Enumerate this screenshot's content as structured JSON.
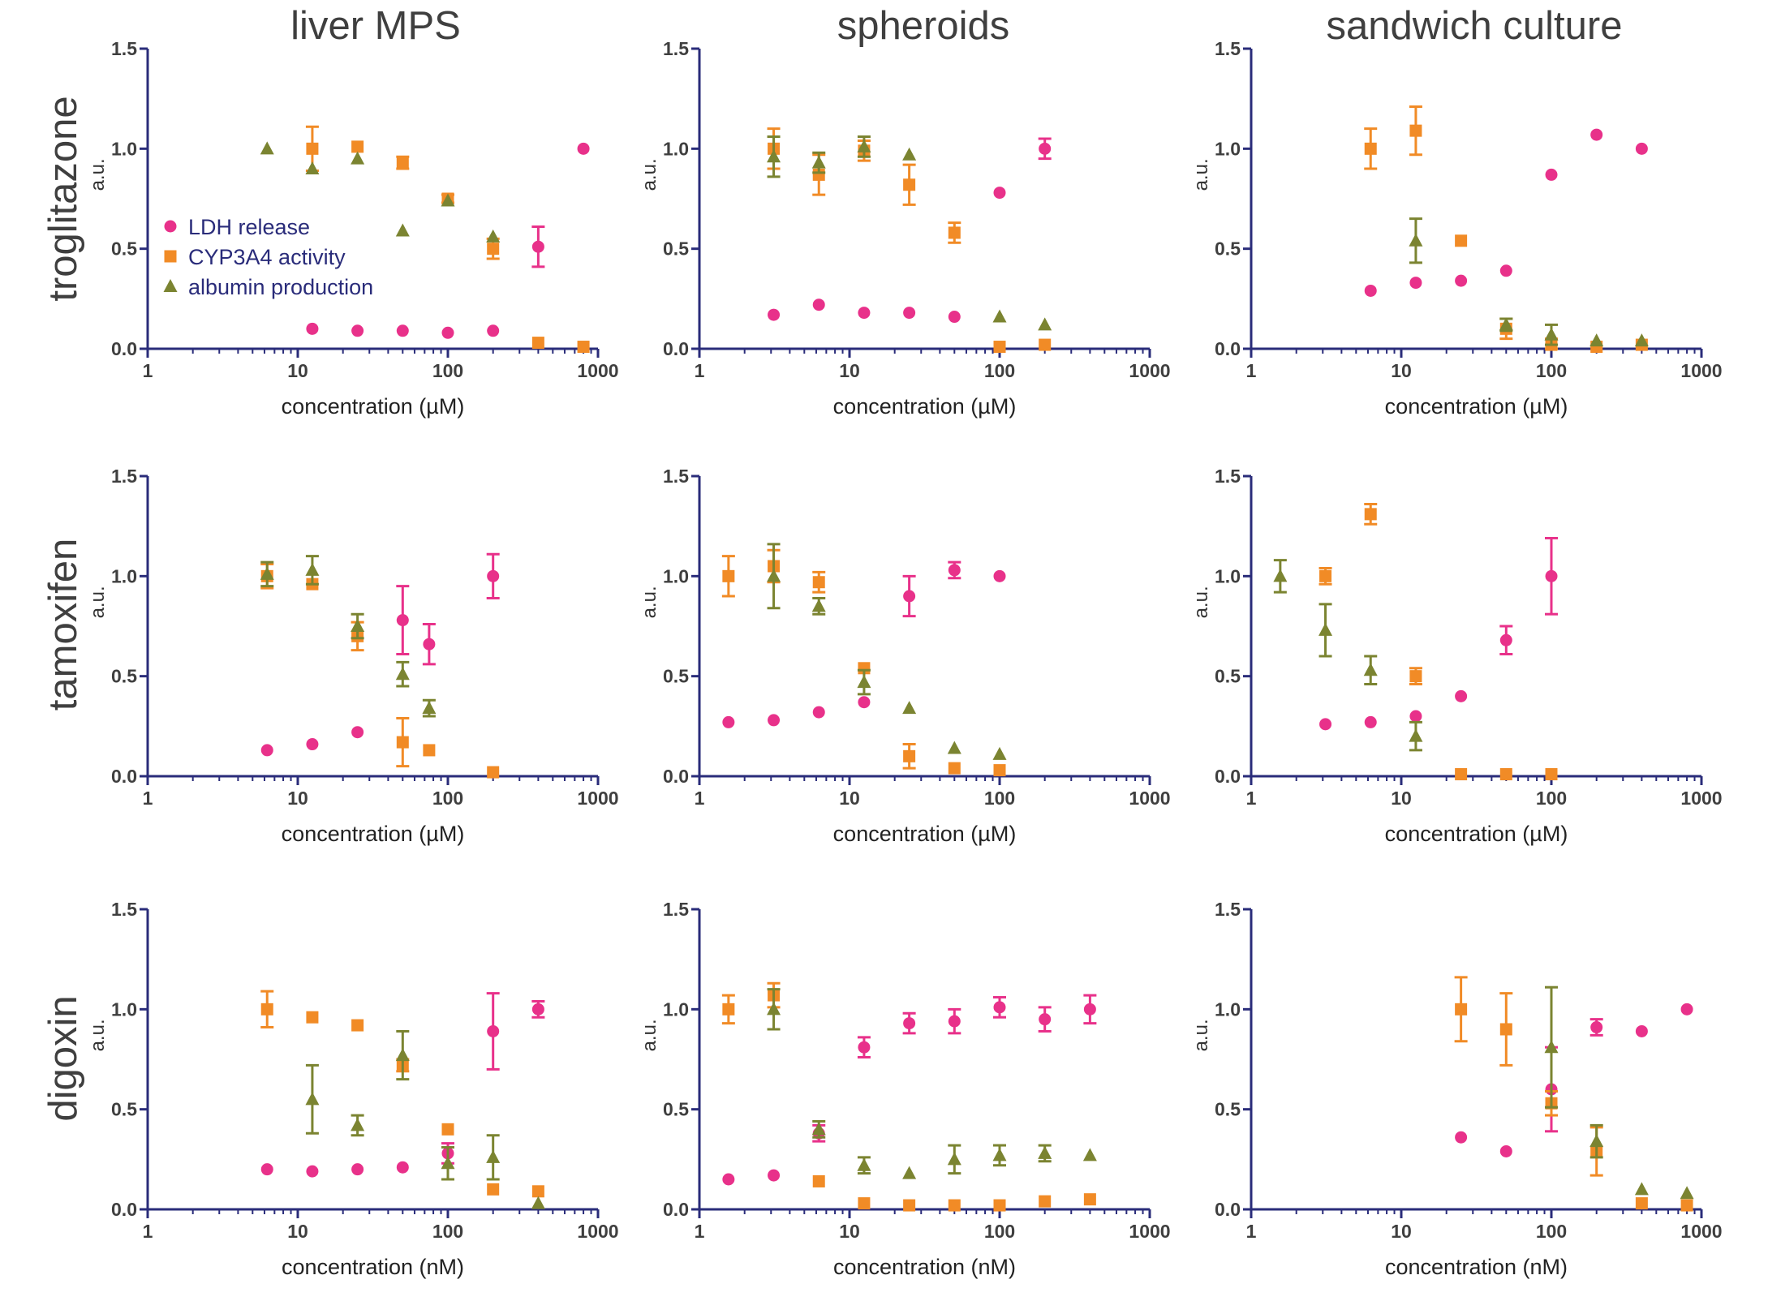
{
  "figure": {
    "column_titles": [
      "liver MPS",
      "spheroids",
      "sandwich culture"
    ],
    "row_titles": [
      "troglitazone",
      "tamoxifen",
      "digoxin"
    ]
  },
  "colors": {
    "axis": "#2a2c7a",
    "LDH release": "#e8318a",
    "CYP3A4 activity": "#f18b26",
    "albumin production": "#7b8431"
  },
  "legend": {
    "position": "upper-left of first panel",
    "entries": [
      {
        "label": "LDH release",
        "marker": "circle",
        "color": "#e8318a"
      },
      {
        "label": "CYP3A4 activity",
        "marker": "square",
        "color": "#f18b26"
      },
      {
        "label": "albumin production",
        "marker": "triangle",
        "color": "#7b8431"
      }
    ]
  },
  "chart_data": [
    {
      "type": "scatter",
      "row": 0,
      "col": 0,
      "xscale": "log",
      "xlim": [
        1,
        1000
      ],
      "ylim": [
        0,
        1.5
      ],
      "xticks": [
        "1",
        "10",
        "100",
        "1000"
      ],
      "yticks": [
        "0.0",
        "0.5",
        "1.0",
        "1.5"
      ],
      "xlabel": "concentration (µM)",
      "ylabel": "a.u.",
      "legend": true,
      "series": [
        {
          "name": "LDH release",
          "x": [
            12.5,
            25,
            50,
            100,
            200,
            400,
            800
          ],
          "y": [
            0.1,
            0.09,
            0.09,
            0.08,
            0.09,
            0.51,
            1.0
          ],
          "err": [
            0,
            0,
            0,
            0,
            0,
            0.1,
            0
          ]
        },
        {
          "name": "CYP3A4 activity",
          "x": [
            12.5,
            25,
            50,
            100,
            200,
            400,
            800
          ],
          "y": [
            1.0,
            1.01,
            0.93,
            0.75,
            0.5,
            0.03,
            0.01
          ],
          "err": [
            0.11,
            0,
            0.03,
            0.02,
            0.05,
            0,
            0
          ]
        },
        {
          "name": "albumin production",
          "x": [
            6.25,
            12.5,
            25,
            50,
            100,
            200
          ],
          "y": [
            1.0,
            0.9,
            0.95,
            0.59,
            0.74,
            0.56
          ],
          "err": [
            0,
            0,
            0,
            0,
            0,
            0
          ]
        }
      ]
    },
    {
      "type": "scatter",
      "row": 0,
      "col": 1,
      "xscale": "log",
      "xlim": [
        1,
        1000
      ],
      "ylim": [
        0,
        1.5
      ],
      "xticks": [
        "1",
        "10",
        "100",
        "1000"
      ],
      "yticks": [
        "0.0",
        "0.5",
        "1.0",
        "1.5"
      ],
      "xlabel": "concentration (µM)",
      "ylabel": "a.u.",
      "series": [
        {
          "name": "LDH release",
          "x": [
            3.125,
            6.25,
            12.5,
            25,
            50,
            100,
            200
          ],
          "y": [
            0.17,
            0.22,
            0.18,
            0.18,
            0.16,
            0.78,
            1.0
          ],
          "err": [
            0,
            0,
            0,
            0,
            0,
            0,
            0.05
          ]
        },
        {
          "name": "CYP3A4 activity",
          "x": [
            3.125,
            6.25,
            12.5,
            25,
            50,
            100,
            200
          ],
          "y": [
            1.0,
            0.87,
            0.99,
            0.82,
            0.58,
            0.01,
            0.02
          ],
          "err": [
            0.1,
            0.1,
            0.05,
            0.1,
            0.05,
            0,
            0
          ]
        },
        {
          "name": "albumin production",
          "x": [
            3.125,
            6.25,
            12.5,
            25,
            100,
            200
          ],
          "y": [
            0.96,
            0.93,
            1.01,
            0.97,
            0.16,
            0.12
          ],
          "err": [
            0.1,
            0.05,
            0.05,
            0,
            0,
            0
          ]
        }
      ]
    },
    {
      "type": "scatter",
      "row": 0,
      "col": 2,
      "xscale": "log",
      "xlim": [
        1,
        1000
      ],
      "ylim": [
        0,
        1.5
      ],
      "xticks": [
        "1",
        "10",
        "100",
        "1000"
      ],
      "yticks": [
        "0.0",
        "0.5",
        "1.0",
        "1.5"
      ],
      "xlabel": "concentration (µM)",
      "ylabel": "a.u.",
      "series": [
        {
          "name": "LDH release",
          "x": [
            6.25,
            12.5,
            25,
            50,
            100,
            200,
            400
          ],
          "y": [
            0.29,
            0.33,
            0.34,
            0.39,
            0.87,
            1.07,
            1.0
          ],
          "err": [
            0,
            0,
            0,
            0,
            0,
            0,
            0
          ]
        },
        {
          "name": "CYP3A4 activity",
          "x": [
            6.25,
            12.5,
            25,
            50,
            100,
            200,
            400
          ],
          "y": [
            1.0,
            1.09,
            0.54,
            0.1,
            0.02,
            0.01,
            0.02
          ],
          "err": [
            0.1,
            0.12,
            0,
            0.05,
            0.03,
            0,
            0
          ]
        },
        {
          "name": "albumin production",
          "x": [
            12.5,
            50,
            100,
            200,
            400
          ],
          "y": [
            0.54,
            0.12,
            0.07,
            0.04,
            0.04
          ],
          "err": [
            0.11,
            0.03,
            0.05,
            0,
            0
          ]
        }
      ]
    },
    {
      "type": "scatter",
      "row": 1,
      "col": 0,
      "xscale": "log",
      "xlim": [
        1,
        1000
      ],
      "ylim": [
        0,
        1.5
      ],
      "xticks": [
        "1",
        "10",
        "100",
        "1000"
      ],
      "yticks": [
        "0.0",
        "0.5",
        "1.0",
        "1.5"
      ],
      "xlabel": "concentration (µM)",
      "ylabel": "a.u.",
      "series": [
        {
          "name": "LDH release",
          "x": [
            6.25,
            12.5,
            25,
            50,
            75,
            200
          ],
          "y": [
            0.13,
            0.16,
            0.22,
            0.78,
            0.66,
            1.0
          ],
          "err": [
            0,
            0,
            0,
            0.17,
            0.1,
            0.11
          ]
        },
        {
          "name": "CYP3A4 activity",
          "x": [
            6.25,
            12.5,
            25,
            50,
            75,
            200
          ],
          "y": [
            1.0,
            0.96,
            0.7,
            0.17,
            0.13,
            0.02
          ],
          "err": [
            0.06,
            0,
            0.07,
            0.12,
            0,
            0
          ]
        },
        {
          "name": "albumin production",
          "x": [
            6.25,
            12.5,
            25,
            50,
            75
          ],
          "y": [
            1.01,
            1.03,
            0.75,
            0.51,
            0.34
          ],
          "err": [
            0.06,
            0.07,
            0.06,
            0.06,
            0.04
          ]
        }
      ]
    },
    {
      "type": "scatter",
      "row": 1,
      "col": 1,
      "xscale": "log",
      "xlim": [
        1,
        1000
      ],
      "ylim": [
        0,
        1.5
      ],
      "xticks": [
        "1",
        "10",
        "100",
        "1000"
      ],
      "yticks": [
        "0.0",
        "0.5",
        "1.0",
        "1.5"
      ],
      "xlabel": "concentration (µM)",
      "ylabel": "a.u.",
      "series": [
        {
          "name": "LDH release",
          "x": [
            1.5625,
            3.125,
            6.25,
            12.5,
            25,
            50,
            100
          ],
          "y": [
            0.27,
            0.28,
            0.32,
            0.37,
            0.9,
            1.03,
            1.0
          ],
          "err": [
            0,
            0,
            0,
            0,
            0.1,
            0.04,
            0
          ]
        },
        {
          "name": "CYP3A4 activity",
          "x": [
            1.5625,
            3.125,
            6.25,
            12.5,
            25,
            50,
            100
          ],
          "y": [
            1.0,
            1.05,
            0.97,
            0.54,
            0.1,
            0.04,
            0.03
          ],
          "err": [
            0.1,
            0.08,
            0.05,
            0,
            0.06,
            0,
            0
          ]
        },
        {
          "name": "albumin production",
          "x": [
            3.125,
            6.25,
            12.5,
            25,
            50,
            100
          ],
          "y": [
            1.0,
            0.85,
            0.47,
            0.34,
            0.14,
            0.11
          ],
          "err": [
            0.16,
            0.04,
            0.06,
            0,
            0,
            0
          ]
        }
      ]
    },
    {
      "type": "scatter",
      "row": 1,
      "col": 2,
      "xscale": "log",
      "xlim": [
        1,
        1000
      ],
      "ylim": [
        0,
        1.5
      ],
      "xticks": [
        "1",
        "10",
        "100",
        "1000"
      ],
      "yticks": [
        "0.0",
        "0.5",
        "1.0",
        "1.5"
      ],
      "xlabel": "concentration (µM)",
      "ylabel": "a.u.",
      "series": [
        {
          "name": "LDH release",
          "x": [
            3.125,
            6.25,
            12.5,
            25,
            50,
            100
          ],
          "y": [
            0.26,
            0.27,
            0.3,
            0.4,
            0.68,
            1.0
          ],
          "err": [
            0,
            0,
            0,
            0,
            0.07,
            0.19
          ]
        },
        {
          "name": "CYP3A4 activity",
          "x": [
            3.125,
            6.25,
            12.5,
            25,
            50,
            100
          ],
          "y": [
            1.0,
            1.31,
            0.5,
            0.01,
            0.01,
            0.01
          ],
          "err": [
            0.04,
            0.05,
            0.04,
            0,
            0,
            0
          ]
        },
        {
          "name": "albumin production",
          "x": [
            1.5625,
            3.125,
            6.25,
            12.5
          ],
          "y": [
            1.0,
            0.73,
            0.53,
            0.2
          ],
          "err": [
            0.08,
            0.13,
            0.07,
            0.07
          ]
        }
      ]
    },
    {
      "type": "scatter",
      "row": 2,
      "col": 0,
      "xscale": "log",
      "xlim": [
        1,
        1000
      ],
      "ylim": [
        0,
        1.5
      ],
      "xticks": [
        "1",
        "10",
        "100",
        "1000"
      ],
      "yticks": [
        "0.0",
        "0.5",
        "1.0",
        "1.5"
      ],
      "xlabel": "concentration (nM)",
      "ylabel": "a.u.",
      "series": [
        {
          "name": "LDH release",
          "x": [
            6.25,
            12.5,
            25,
            50,
            100,
            200,
            400
          ],
          "y": [
            0.2,
            0.19,
            0.2,
            0.21,
            0.28,
            0.89,
            1.0
          ],
          "err": [
            0,
            0,
            0,
            0,
            0.05,
            0.19,
            0.04
          ]
        },
        {
          "name": "CYP3A4 activity",
          "x": [
            6.25,
            12.5,
            25,
            50,
            100,
            200,
            400
          ],
          "y": [
            1.0,
            0.96,
            0.92,
            0.72,
            0.4,
            0.1,
            0.09
          ],
          "err": [
            0.09,
            0,
            0,
            0.03,
            0,
            0,
            0
          ]
        },
        {
          "name": "albumin production",
          "x": [
            12.5,
            25,
            50,
            100,
            200,
            400
          ],
          "y": [
            0.55,
            0.42,
            0.77,
            0.23,
            0.26,
            0.03
          ],
          "err": [
            0.17,
            0.05,
            0.12,
            0.08,
            0.11,
            0
          ]
        }
      ]
    },
    {
      "type": "scatter",
      "row": 2,
      "col": 1,
      "xscale": "log",
      "xlim": [
        1,
        1000
      ],
      "ylim": [
        0,
        1.5
      ],
      "xticks": [
        "1",
        "10",
        "100",
        "1000"
      ],
      "yticks": [
        "0.0",
        "0.5",
        "1.0",
        "1.5"
      ],
      "xlabel": "concentration (nM)",
      "ylabel": "a.u.",
      "series": [
        {
          "name": "LDH release",
          "x": [
            1.5625,
            3.125,
            6.25,
            12.5,
            25,
            50,
            100,
            200,
            400
          ],
          "y": [
            0.15,
            0.17,
            0.38,
            0.81,
            0.93,
            0.94,
            1.01,
            0.95,
            1.0
          ],
          "err": [
            0,
            0,
            0.04,
            0.05,
            0.05,
            0.06,
            0.05,
            0.06,
            0.07
          ]
        },
        {
          "name": "CYP3A4 activity",
          "x": [
            1.5625,
            3.125,
            6.25,
            12.5,
            25,
            50,
            100,
            200,
            400
          ],
          "y": [
            1.0,
            1.07,
            0.14,
            0.03,
            0.02,
            0.02,
            0.02,
            0.04,
            0.05
          ],
          "err": [
            0.07,
            0.06,
            0,
            0,
            0,
            0,
            0,
            0,
            0
          ]
        },
        {
          "name": "albumin production",
          "x": [
            3.125,
            6.25,
            12.5,
            25,
            50,
            100,
            200,
            400
          ],
          "y": [
            1.0,
            0.4,
            0.22,
            0.18,
            0.25,
            0.27,
            0.28,
            0.27
          ],
          "err": [
            0.1,
            0.04,
            0.04,
            0,
            0.07,
            0.05,
            0.04,
            0
          ]
        }
      ]
    },
    {
      "type": "scatter",
      "row": 2,
      "col": 2,
      "xscale": "log",
      "xlim": [
        1,
        1000
      ],
      "ylim": [
        0,
        1.5
      ],
      "xticks": [
        "1",
        "10",
        "100",
        "1000"
      ],
      "yticks": [
        "0.0",
        "0.5",
        "1.0",
        "1.5"
      ],
      "xlabel": "concentration (nM)",
      "ylabel": "a.u.",
      "series": [
        {
          "name": "LDH release",
          "x": [
            25,
            50,
            100,
            200,
            400,
            800
          ],
          "y": [
            0.36,
            0.29,
            0.6,
            0.91,
            0.89,
            1.0
          ],
          "err": [
            0,
            0,
            0.21,
            0.04,
            0,
            0
          ]
        },
        {
          "name": "CYP3A4 activity",
          "x": [
            25,
            50,
            100,
            200,
            400,
            800
          ],
          "y": [
            1.0,
            0.9,
            0.53,
            0.29,
            0.03,
            0.02
          ],
          "err": [
            0.16,
            0.18,
            0.06,
            0.12,
            0,
            0
          ]
        },
        {
          "name": "albumin production",
          "x": [
            100,
            200,
            400,
            800
          ],
          "y": [
            0.81,
            0.34,
            0.1,
            0.08
          ],
          "err": [
            0.3,
            0.08,
            0,
            0
          ]
        }
      ]
    }
  ]
}
